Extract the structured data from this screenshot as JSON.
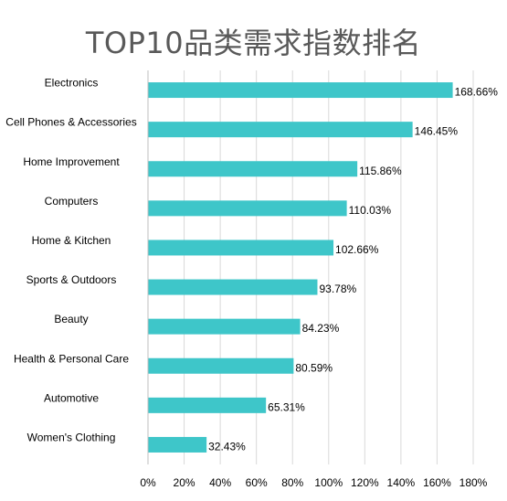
{
  "chart_data": {
    "type": "bar",
    "orientation": "horizontal",
    "title": "TOP10品类需求指数排名",
    "categories": [
      "Electronics",
      "Cell Phones & Accessories",
      "Home Improvement",
      "Computers",
      "Home & Kitchen",
      "Sports & Outdoors",
      "Beauty",
      "Health & Personal Care",
      "Automotive",
      "Women's Clothing"
    ],
    "values": [
      168.66,
      146.45,
      115.86,
      110.03,
      102.66,
      93.78,
      84.23,
      80.59,
      65.31,
      32.43
    ],
    "data_labels": [
      "168.66%",
      "146.45%",
      "115.86%",
      "110.03%",
      "102.66%",
      "93.78%",
      "84.23%",
      "80.59%",
      "65.31%",
      "32.43%"
    ],
    "xlim": [
      0,
      180
    ],
    "xticks": [
      "0%",
      "20%",
      "40%",
      "60%",
      "80%",
      "100%",
      "120%",
      "140%",
      "160%",
      "180%"
    ],
    "gridlines": "vertical",
    "legend": "none",
    "bar_color": "#3ec6c9",
    "grid_color": "#d9d9d9"
  }
}
